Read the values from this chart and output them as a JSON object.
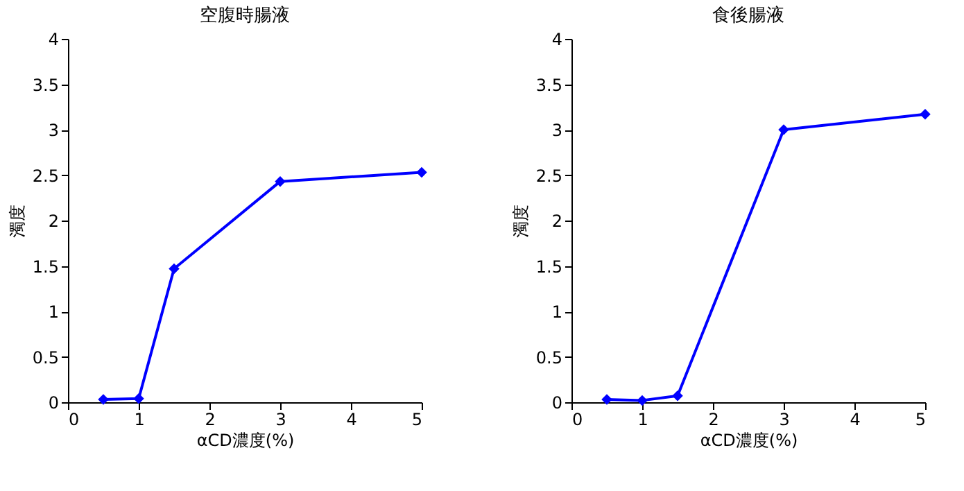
{
  "chart_data": [
    {
      "type": "line",
      "title": "空腹時腸液",
      "xlabel": "αCD濃度(%)",
      "ylabel": "濁度",
      "x": [
        0.5,
        1,
        1.5,
        3,
        5
      ],
      "series": [
        {
          "color": "#0000ff",
          "values": [
            0.03,
            0.04,
            1.47,
            2.43,
            2.53
          ]
        }
      ],
      "xlim": [
        0,
        5
      ],
      "xticks": [
        0,
        1,
        2,
        3,
        4,
        5
      ],
      "ylim": [
        0,
        4
      ],
      "yticks": [
        0,
        0.5,
        1,
        1.5,
        2,
        2.5,
        3,
        3.5,
        4
      ],
      "grid": false,
      "marker": "diamond",
      "line_style": "solid"
    },
    {
      "type": "line",
      "title": "食後腸液",
      "xlabel": "αCD濃度(%)",
      "ylabel": "濁度",
      "x": [
        0.5,
        1,
        1.5,
        3,
        5
      ],
      "series": [
        {
          "color": "#0000ff",
          "values": [
            0.03,
            0.02,
            0.07,
            3.0,
            3.17
          ]
        }
      ],
      "xlim": [
        0,
        5
      ],
      "xticks": [
        0,
        1,
        2,
        3,
        4,
        5
      ],
      "ylim": [
        0,
        4
      ],
      "yticks": [
        0,
        0.5,
        1,
        1.5,
        2,
        2.5,
        3,
        3.5,
        4
      ],
      "grid": false,
      "marker": "diamond",
      "line_style": "solid"
    }
  ]
}
